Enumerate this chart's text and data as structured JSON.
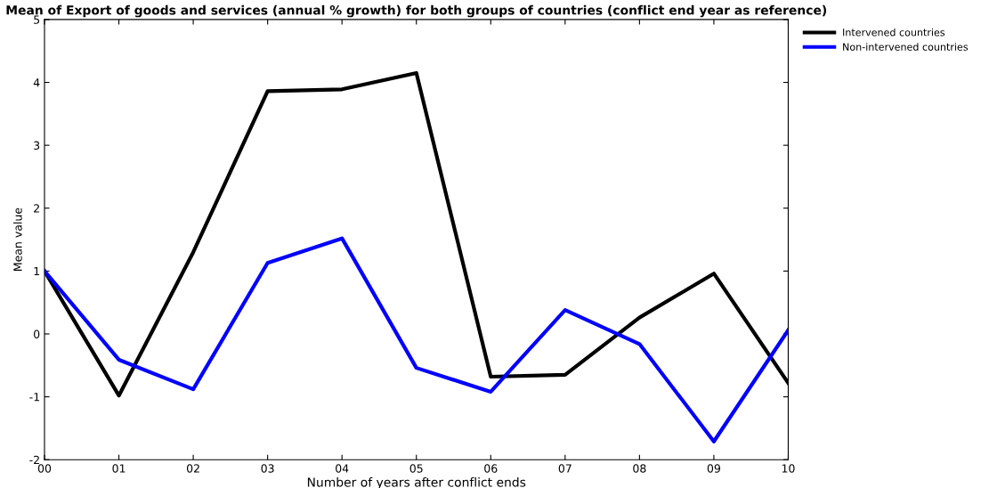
{
  "chart_data": {
    "type": "line",
    "title": "Mean of Export of goods and services (annual % growth) for both groups of countries (conflict end year as reference)",
    "xlabel": "Number of years after conflict ends",
    "ylabel": "Mean value",
    "x": [
      0,
      1,
      2,
      3,
      4,
      5,
      6,
      7,
      8,
      9,
      10
    ],
    "series": [
      {
        "name": "Intervened countries",
        "color": "#000000",
        "values": [
          1.0,
          -0.98,
          1.3,
          3.86,
          3.89,
          4.15,
          -0.68,
          -0.65,
          0.26,
          0.96,
          -0.78
        ]
      },
      {
        "name": "Non-intervened countries",
        "color": "#0000ff",
        "values": [
          1.0,
          -0.41,
          -0.88,
          1.13,
          1.52,
          -0.54,
          -0.92,
          0.38,
          -0.16,
          -1.71,
          0.06
        ]
      }
    ],
    "xlim": [
      0,
      10
    ],
    "xticks": [
      {
        "value": 0,
        "label": "00"
      },
      {
        "value": 1,
        "label": "01"
      },
      {
        "value": 2,
        "label": "02"
      },
      {
        "value": 3,
        "label": "03"
      },
      {
        "value": 4,
        "label": "04"
      },
      {
        "value": 5,
        "label": "05"
      },
      {
        "value": 6,
        "label": "06"
      },
      {
        "value": 7,
        "label": "07"
      },
      {
        "value": 8,
        "label": "08"
      },
      {
        "value": 9,
        "label": "09"
      },
      {
        "value": 10,
        "label": "10"
      }
    ],
    "ylim": [
      -2,
      5
    ],
    "yticks": [
      -2,
      -1,
      0,
      1,
      2,
      3,
      4,
      5
    ],
    "grid": false,
    "legend": "top right",
    "marker": "none",
    "line_style": "solid"
  }
}
